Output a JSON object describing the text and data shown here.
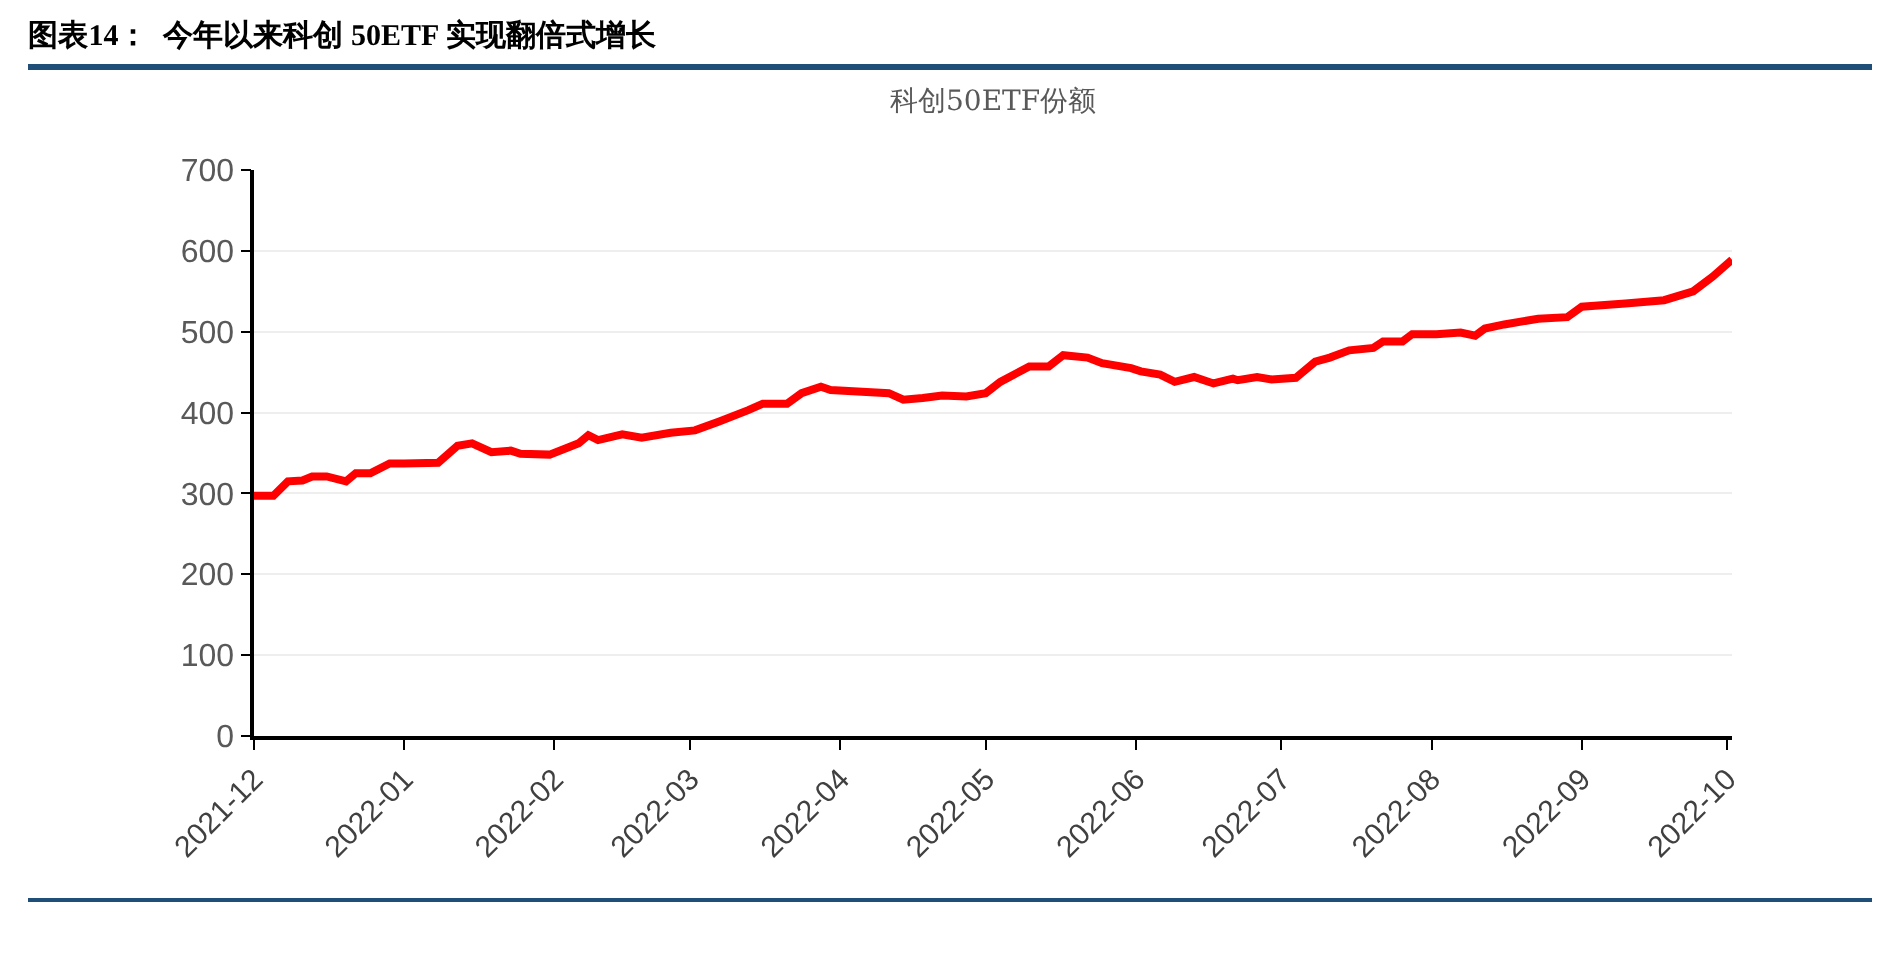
{
  "chart_data": {
    "type": "line",
    "title": "图表14：  今年以来科创 50ETF 实现翻倍式增长",
    "subtitle": "科创50ETF份额",
    "x": [
      "2021-12-01",
      "2021-12-05",
      "2021-12-08",
      "2021-12-11",
      "2021-12-13",
      "2021-12-16",
      "2021-12-20",
      "2021-12-22",
      "2021-12-25",
      "2021-12-29",
      "2022-01-01",
      "2022-01-08",
      "2022-01-12",
      "2022-01-15",
      "2022-01-19",
      "2022-01-23",
      "2022-01-25",
      "2022-01-31",
      "2022-02-03",
      "2022-02-06",
      "2022-02-08",
      "2022-02-10",
      "2022-02-15",
      "2022-02-19",
      "2022-02-25",
      "2022-03-02",
      "2022-03-07",
      "2022-03-13",
      "2022-03-16",
      "2022-03-21",
      "2022-03-24",
      "2022-03-28",
      "2022-03-30",
      "2022-04-11",
      "2022-04-14",
      "2022-04-18",
      "2022-04-22",
      "2022-04-27",
      "2022-05-01",
      "2022-05-04",
      "2022-05-10",
      "2022-05-14",
      "2022-05-17",
      "2022-05-22",
      "2022-05-25",
      "2022-05-31",
      "2022-06-02",
      "2022-06-06",
      "2022-06-09",
      "2022-06-13",
      "2022-06-17",
      "2022-06-21",
      "2022-06-22",
      "2022-06-26",
      "2022-06-29",
      "2022-07-04",
      "2022-07-08",
      "2022-07-11",
      "2022-07-15",
      "2022-07-20",
      "2022-07-22",
      "2022-07-26",
      "2022-07-28",
      "2022-08-02",
      "2022-08-07",
      "2022-08-10",
      "2022-08-12",
      "2022-08-16",
      "2022-08-23",
      "2022-08-29",
      "2022-09-01",
      "2022-09-10",
      "2022-09-18",
      "2022-09-24",
      "2022-09-28",
      "2022-10-02"
    ],
    "series": [
      {
        "color": "#ff0000",
        "values": [
          297,
          297,
          315,
          316,
          321,
          321,
          315,
          325,
          325,
          337,
          337,
          338,
          359,
          362,
          351,
          353,
          349,
          348,
          355,
          362,
          372,
          366,
          373,
          369,
          375,
          378,
          389,
          403,
          411,
          411,
          424,
          432,
          428,
          424,
          416,
          418,
          421,
          420,
          424,
          438,
          457,
          457,
          471,
          468,
          461,
          455,
          451,
          447,
          438,
          444,
          436,
          442,
          440,
          444,
          441,
          443,
          463,
          468,
          477,
          480,
          488,
          488,
          497,
          497,
          499,
          495,
          504,
          509,
          516,
          518,
          531,
          535,
          539,
          550,
          568,
          589
        ]
      }
    ],
    "xlim": [
      "2021-12-01",
      "2022-10-02"
    ],
    "xticks": [
      {
        "value": "2021-12-01",
        "label": "2021-12"
      },
      {
        "value": "2022-01-01",
        "label": "2022-01"
      },
      {
        "value": "2022-02-01",
        "label": "2022-02"
      },
      {
        "value": "2022-03-01",
        "label": "2022-03"
      },
      {
        "value": "2022-04-01",
        "label": "2022-04"
      },
      {
        "value": "2022-05-01",
        "label": "2022-05"
      },
      {
        "value": "2022-06-01",
        "label": "2022-06"
      },
      {
        "value": "2022-07-01",
        "label": "2022-07"
      },
      {
        "value": "2022-08-01",
        "label": "2022-08"
      },
      {
        "value": "2022-09-01",
        "label": "2022-09"
      },
      {
        "value": "2022-10-01",
        "label": "2022-10"
      }
    ],
    "ylim": [
      0,
      700
    ],
    "yticks": [
      0,
      100,
      200,
      300,
      400,
      500,
      600,
      700
    ],
    "grid": "y",
    "marker": "none",
    "line_style": "solid"
  }
}
